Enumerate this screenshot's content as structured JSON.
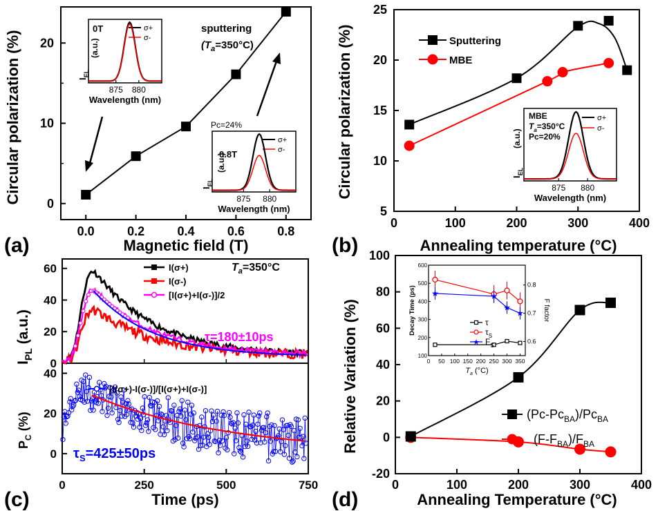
{
  "chart_data": [
    {
      "panel": "(a)",
      "type": "line",
      "xlabel": "Magnetic field (T)",
      "ylabel": "Circular polarization (%)",
      "xlim": [
        -0.1,
        0.9
      ],
      "ylim": [
        -2,
        24.5
      ],
      "xticks": [
        "0.0",
        "0.2",
        "0.4",
        "0.6",
        "0.8"
      ],
      "yticks": [
        "0",
        "10",
        "20"
      ],
      "series": [
        {
          "x": [
            0,
            0.2,
            0.4,
            0.6,
            0.8
          ],
          "y": [
            1.1,
            5.9,
            9.6,
            16.1,
            23.9
          ]
        }
      ],
      "annotation": [
        "sputtering",
        "(T",
        "a",
        "=350°C)"
      ],
      "insets": [
        {
          "field": "0T",
          "pc": "",
          "legend": [
            "σ+",
            "σ-"
          ],
          "ylabel": "I",
          "ylabel_sub": "EL",
          "ylabel_unit": "(a.u.)",
          "xticks": [
            "875",
            "880"
          ],
          "xlabel": "Wavelength (nm)",
          "peak": 878,
          "amp_plus": 1.0,
          "amp_minus": 0.97
        },
        {
          "field": "0.8T",
          "pc": "Pc=24%",
          "legend": [
            "σ+",
            "σ-"
          ],
          "ylabel": "I",
          "ylabel_sub": "EL",
          "ylabel_unit": "(a.u.)",
          "xticks": [
            "875",
            "880"
          ],
          "xlabel": "Wavelength (nm)",
          "peak": 878,
          "amp_plus": 1.0,
          "amp_minus": 0.62
        }
      ]
    },
    {
      "panel": "(b)",
      "type": "line",
      "xlabel": "Annealing temperature (°C)",
      "ylabel": "Circular polarization (%)",
      "xlim": [
        0,
        400
      ],
      "ylim": [
        5,
        25
      ],
      "xticks": [
        "0",
        "100",
        "200",
        "300",
        "400"
      ],
      "yticks": [
        "5",
        "10",
        "15",
        "20",
        "25"
      ],
      "series": [
        {
          "name": "Sputtering",
          "x": [
            25,
            200,
            300,
            350,
            380
          ],
          "y": [
            13.6,
            18.2,
            23.4,
            23.9,
            19.0
          ]
        },
        {
          "name": "MBE",
          "x": [
            25,
            250,
            275,
            350
          ],
          "y": [
            11.5,
            17.9,
            18.8,
            19.7
          ]
        }
      ],
      "inset": {
        "lines": [
          "MBE",
          "=350°C",
          "Pc=20%"
        ],
        "ta": "T",
        "ta_sub": "a",
        "legend": [
          "σ+",
          "σ-"
        ],
        "ylabel": "I",
        "ylabel_sub": "EL",
        "ylabel_unit": "(a.u.)",
        "xticks": [
          "875",
          "880"
        ],
        "xlabel": "Wavelength (nm)",
        "peak": 878,
        "amp_plus": 1.0,
        "amp_minus": 0.68
      }
    },
    {
      "panel": "(c)",
      "type": "line",
      "xlabel": "Time (ps)",
      "top": {
        "ylabel": "I",
        "ylabel_sub": "PL",
        "ylabel_unit": "(a.u.)",
        "xlim": [
          0,
          750
        ],
        "ylim": [
          0,
          66
        ],
        "yticks": [
          "0",
          "20",
          "40",
          "60"
        ],
        "series": [
          {
            "name": "I(σ+)",
            "peak": 61,
            "color": "#000000"
          },
          {
            "name": "I(σ-)",
            "peak": 33,
            "color": "#ff0000"
          },
          {
            "name": "[I(σ+)+I(σ-)]/2",
            "peak": 47,
            "color": "#ff00ff"
          }
        ],
        "fit_tau_ps": 180,
        "annotation_ta": [
          "T",
          "a",
          "=350°C"
        ],
        "tau_label": "τ=180±10ps"
      },
      "bottom": {
        "ylabel": "P",
        "ylabel_sub": "C",
        "ylabel_unit": "(%)",
        "xlim": [
          0,
          750
        ],
        "ylim": [
          -10,
          45
        ],
        "yticks": [
          "0",
          "20",
          "40"
        ],
        "xticks": [
          "0",
          "250",
          "500",
          "750"
        ],
        "series": [
          {
            "name": "[I(σ+)-I(σ-)]/[I(σ+)+I(σ-)]",
            "color": "#0000ff"
          }
        ],
        "fit": {
          "start": 50,
          "A": 32,
          "tau_ps": 425
        },
        "tau_label": [
          "τ",
          "S",
          "=425±50ps"
        ]
      }
    },
    {
      "panel": "(d)",
      "type": "line",
      "xlabel": "Annealing Temperature (°C)",
      "ylabel": "Relative Variation (%)",
      "xlim": [
        0,
        400
      ],
      "ylim": [
        -20,
        100
      ],
      "xticks": [
        "0",
        "100",
        "200",
        "300",
        "400"
      ],
      "yticks": [
        "-20",
        "0",
        "20",
        "40",
        "60",
        "80",
        "100"
      ],
      "series": [
        {
          "name": "(Pc-Pc",
          "name_sub": "BA",
          "name_tail": ")/Pc",
          "name_tail_sub": "BA",
          "x": [
            25,
            200,
            300,
            350
          ],
          "y": [
            0.5,
            33,
            70,
            74
          ]
        },
        {
          "name": "(F-F",
          "name_sub": "BA",
          "name_tail": ")/F",
          "name_tail_sub": "BA",
          "x": [
            25,
            200,
            300,
            350
          ],
          "y": [
            0,
            -2.5,
            -6.5,
            -8
          ]
        }
      ],
      "inset": {
        "ylabel_left": "Decay Time (ps)",
        "ylabel_right": "F factor",
        "xlabel": "T",
        "xlabel_sub": "a",
        "xlabel_tail": " (°C)",
        "xlim": [
          0,
          370
        ],
        "ylim": [
          100,
          600
        ],
        "ylim_right": [
          0.55,
          0.87
        ],
        "xticks": [
          "0",
          "50",
          "100",
          "150",
          "200",
          "250",
          "300",
          "350"
        ],
        "yticks": [
          "100",
          "200",
          "300",
          "400",
          "500",
          "600"
        ],
        "yticks_right": [
          "0.6",
          "0.7",
          "0.8"
        ],
        "series": [
          {
            "name": "τ",
            "x": [
              25,
              250,
              300,
              350
            ],
            "y": [
              160,
              160,
              180,
              170
            ],
            "axis": "left",
            "color": "#000000",
            "marker": "square"
          },
          {
            "name": "τ",
            "name_sub": "S",
            "x": [
              25,
              250,
              300,
              350
            ],
            "y": [
              520,
              440,
              460,
              400
            ],
            "axis": "left",
            "color": "#ff0000",
            "marker": "circle"
          },
          {
            "name": "F",
            "name_sub": "S",
            "x": [
              25,
              250,
              300,
              350
            ],
            "y": [
              0.77,
              0.76,
              0.72,
              0.7
            ],
            "axis": "right",
            "color": "#0000ff",
            "marker": "star"
          }
        ]
      }
    }
  ]
}
